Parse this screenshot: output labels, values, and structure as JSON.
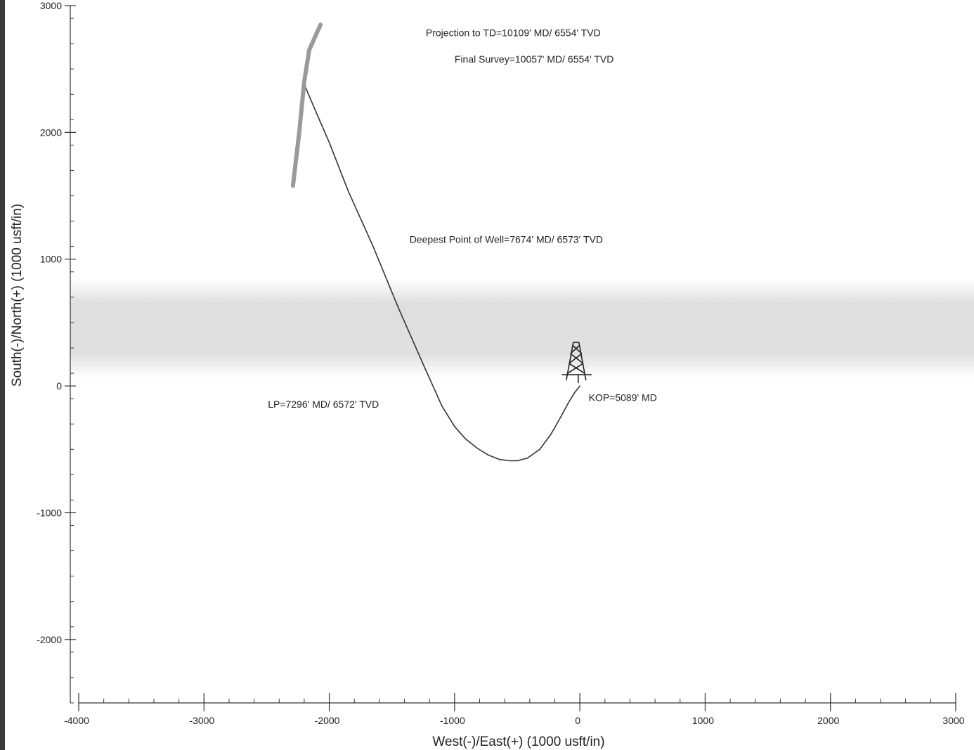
{
  "chart_data": {
    "type": "line",
    "title": "",
    "xlabel": "West(-)/East(+) (1000 usft/in)",
    "ylabel": "South(-)/North(+) (1000 usft/in)",
    "xlim": [
      -4000,
      3000
    ],
    "ylim": [
      -2500,
      3000
    ],
    "x_ticks": [
      -4000,
      -3000,
      -2000,
      -1000,
      0,
      1000,
      2000,
      3000
    ],
    "x_tick_labels": [
      "-4000",
      "-3000",
      "-2000",
      "-1000",
      "0",
      "1000",
      "2000",
      "3000"
    ],
    "y_ticks": [
      3000,
      2000,
      1000,
      0,
      -1000,
      -2000
    ],
    "y_tick_labels": [
      "3000",
      "2000",
      "1000",
      "0",
      "-1000",
      "-2000"
    ],
    "grid": false,
    "series": [
      {
        "role": "wellbore path",
        "color": "#333333",
        "x": [
          0,
          -40,
          -90,
          -150,
          -230,
          -320,
          -420,
          -500,
          -560,
          -640,
          -730,
          -820,
          -910,
          -1000,
          -1100,
          -1250,
          -1450,
          -1650,
          -1850,
          -2000,
          -2110,
          -2200,
          -2190
        ],
        "y": [
          0,
          -50,
          -130,
          -240,
          -380,
          -500,
          -570,
          -590,
          -590,
          -580,
          -545,
          -490,
          -420,
          -320,
          -160,
          170,
          620,
          1100,
          1540,
          1920,
          2170,
          2380,
          2400
        ]
      },
      {
        "role": "offset well",
        "color": "#9a9a9a",
        "x": [
          -2290,
          -2240,
          -2200,
          -2160,
          -2070
        ],
        "y": [
          1580,
          2000,
          2400,
          2650,
          2850
        ]
      }
    ],
    "annotations": [
      {
        "text": "Projection to TD=10109' MD/ 6554' TVD",
        "x": -1230,
        "y": 2760
      },
      {
        "text": "Final Survey=10057' MD/ 6554' TVD",
        "x": -1000,
        "y": 2550
      },
      {
        "text": "Deepest Point of Well=7674' MD/ 6573' TVD",
        "x": -1360,
        "y": 1130
      },
      {
        "text": "LP=7296' MD/ 6572' TVD",
        "x": -2490,
        "y": -170
      },
      {
        "text": "KOP=5089' MD",
        "x": 70,
        "y": -120
      }
    ],
    "rig_marker": {
      "x": -30,
      "y": 100
    }
  }
}
